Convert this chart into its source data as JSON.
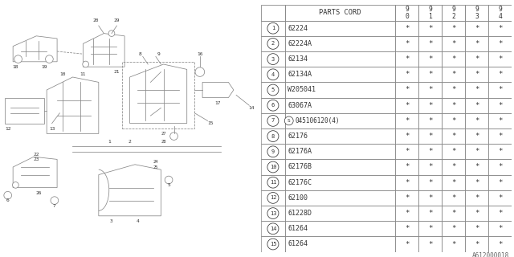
{
  "bg_color": "#ffffff",
  "line_color": "#888888",
  "text_color": "#333333",
  "footer_text": "A612000018",
  "header_labels": [
    "PARTS CORD",
    "9\n0",
    "9\n1",
    "9\n2",
    "9\n3",
    "9\n4"
  ],
  "rows": [
    [
      "1",
      "62224",
      "*",
      "*",
      "*",
      "*",
      "*"
    ],
    [
      "2",
      "62224A",
      "*",
      "*",
      "*",
      "*",
      "*"
    ],
    [
      "3",
      "62134",
      "*",
      "*",
      "*",
      "*",
      "*"
    ],
    [
      "4",
      "62134A",
      "*",
      "*",
      "*",
      "*",
      "*"
    ],
    [
      "5",
      "W205041",
      "*",
      "*",
      "*",
      "*",
      "*"
    ],
    [
      "6",
      "63067A",
      "*",
      "*",
      "*",
      "*",
      "*"
    ],
    [
      "7",
      "S045106120(4)",
      "*",
      "*",
      "*",
      "*",
      "*"
    ],
    [
      "8",
      "62176",
      "*",
      "*",
      "*",
      "*",
      "*"
    ],
    [
      "9",
      "62176A",
      "*",
      "*",
      "*",
      "*",
      "*"
    ],
    [
      "10",
      "62176B",
      "*",
      "*",
      "*",
      "*",
      "*"
    ],
    [
      "11",
      "62176C",
      "*",
      "*",
      "*",
      "*",
      "*"
    ],
    [
      "12",
      "62100",
      "*",
      "*",
      "*",
      "*",
      "*"
    ],
    [
      "13",
      "61228D",
      "*",
      "*",
      "*",
      "*",
      "*"
    ],
    [
      "14",
      "61264",
      "*",
      "*",
      "*",
      "*",
      "*"
    ],
    [
      "15",
      "61264",
      "*",
      "*",
      "*",
      "*",
      "*"
    ]
  ]
}
